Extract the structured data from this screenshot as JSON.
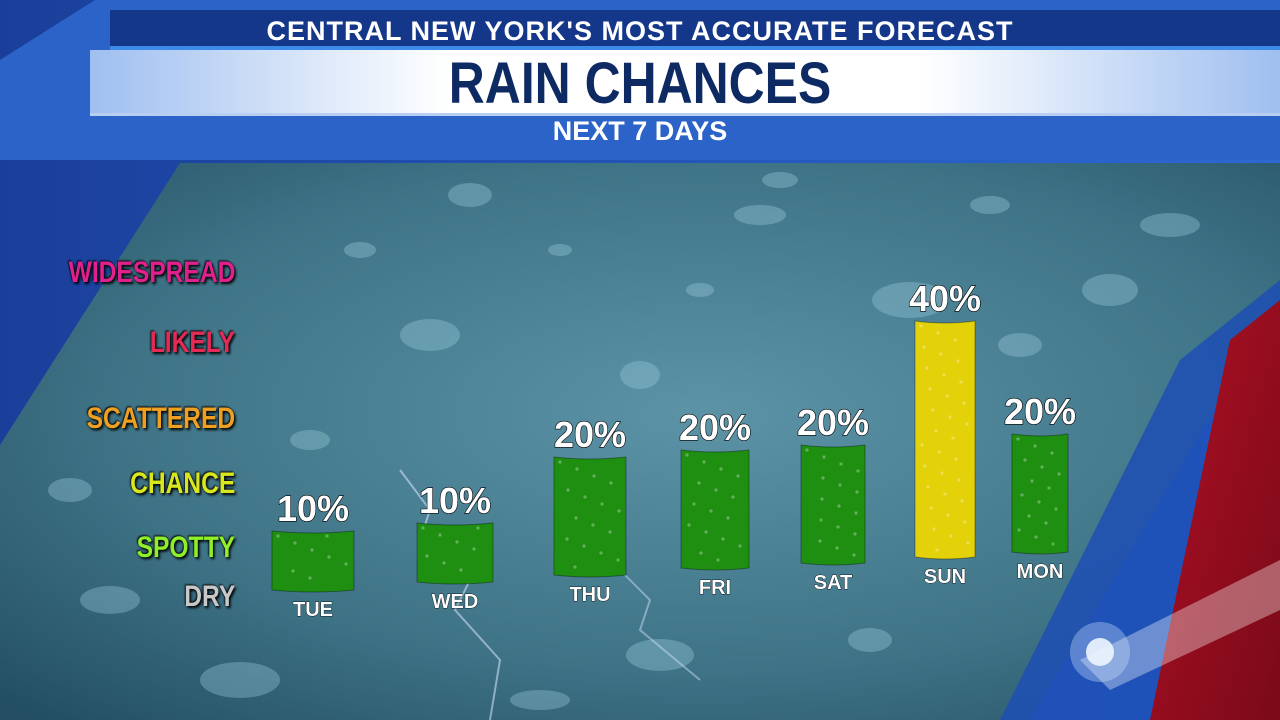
{
  "header": {
    "tagline": "CENTRAL NEW YORK'S MOST ACCURATE FORECAST",
    "title": "RAIN CHANCES",
    "subtitle": "NEXT 7 DAYS"
  },
  "scale": [
    {
      "label": "WIDESPREAD",
      "color": "#e0208c"
    },
    {
      "label": "LIKELY",
      "color": "#e52a55"
    },
    {
      "label": "SCATTERED",
      "color": "#f0a020"
    },
    {
      "label": "CHANCE",
      "color": "#d8e81c"
    },
    {
      "label": "SPOTTY",
      "color": "#8ef028"
    },
    {
      "label": "DRY",
      "color": "#c8c8c8"
    }
  ],
  "chart_data": {
    "type": "bar",
    "categories": [
      "TUE",
      "WED",
      "THU",
      "FRI",
      "SAT",
      "SUN",
      "MON"
    ],
    "values": [
      10,
      10,
      20,
      20,
      20,
      40,
      20
    ],
    "value_labels": [
      "10%",
      "10%",
      "20%",
      "20%",
      "20%",
      "40%",
      "20%"
    ],
    "unit": "%",
    "colors": [
      "#1f8f12",
      "#1f8f12",
      "#1f8f12",
      "#1f8f12",
      "#1f8f12",
      "#e3d20a",
      "#1f8f12"
    ]
  }
}
